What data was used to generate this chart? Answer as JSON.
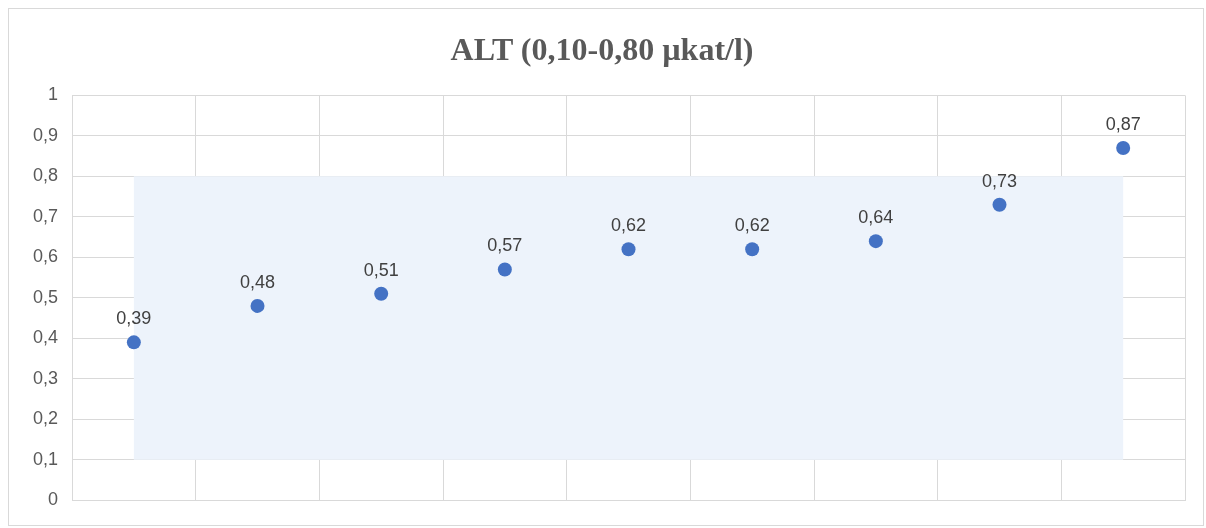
{
  "chart_data": {
    "type": "scatter",
    "title": "ALT (0,10-0,80 µkat/l)",
    "categories": [
      null,
      null,
      null,
      null,
      null,
      null,
      null,
      null,
      null
    ],
    "series": [
      {
        "color": "#4472c4",
        "values": [
          0.39,
          0.48,
          0.51,
          0.57,
          0.62,
          0.62,
          0.64,
          0.73,
          0.87
        ],
        "value_labels": [
          "0,39",
          "0,48",
          "0,51",
          "0,57",
          "0,62",
          "0,62",
          "0,64",
          "0,73",
          "0,87"
        ]
      }
    ],
    "ylim": [
      0,
      1
    ],
    "yticks": [
      {
        "value": 0,
        "label": "0"
      },
      {
        "value": 0.1,
        "label": "0,1"
      },
      {
        "value": 0.2,
        "label": "0,2"
      },
      {
        "value": 0.3,
        "label": "0,3"
      },
      {
        "value": 0.4,
        "label": "0,4"
      },
      {
        "value": 0.5,
        "label": "0,5"
      },
      {
        "value": 0.6,
        "label": "0,6"
      },
      {
        "value": 0.7,
        "label": "0,7"
      },
      {
        "value": 0.8,
        "label": "0,8"
      },
      {
        "value": 0.9,
        "label": "0,9"
      },
      {
        "value": 1,
        "label": "1"
      }
    ],
    "bands": [
      {
        "axis": "y",
        "from": 0.1,
        "to": 0.8,
        "color": "#edf3fb"
      }
    ],
    "grid": true,
    "legend": false,
    "marker": "circle"
  }
}
